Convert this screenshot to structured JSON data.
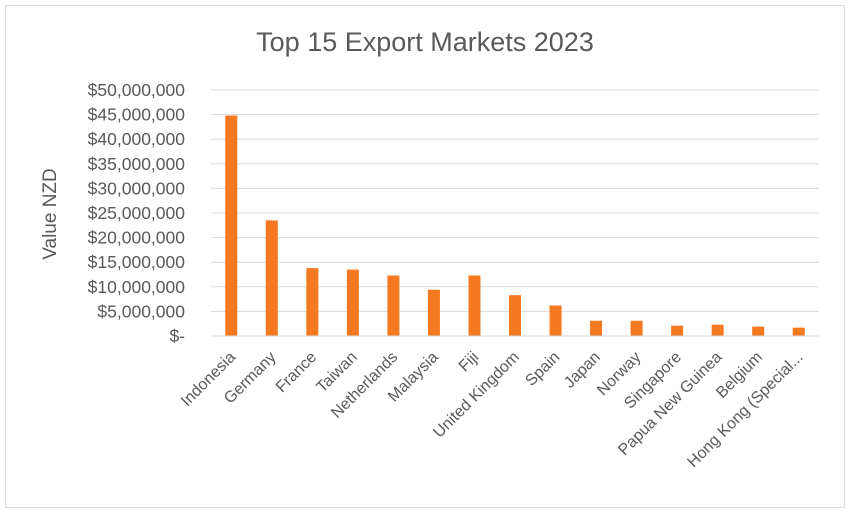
{
  "chart_data": {
    "type": "bar",
    "title": "Top 15 Export Markets 2023",
    "ylabel": "Value NZD",
    "xlabel": "",
    "categories": [
      "Indonesia",
      "Germany",
      "France",
      "Taiwan",
      "Netherlands",
      "Malaysia",
      "Fiji",
      "United Kingdom",
      "Spain",
      "Japan",
      "Norway",
      "Singapore",
      "Papua New Guinea",
      "Belgium",
      "Hong Kong (Special..."
    ],
    "values": [
      44800000,
      23500000,
      13800000,
      13500000,
      12300000,
      9400000,
      12300000,
      8300000,
      6200000,
      3100000,
      3100000,
      2100000,
      2300000,
      1900000,
      1700000
    ],
    "ylim": [
      0,
      50000000
    ],
    "yticks": [
      0,
      5000000,
      10000000,
      15000000,
      20000000,
      25000000,
      30000000,
      35000000,
      40000000,
      45000000,
      50000000
    ],
    "ytick_labels": [
      "$-",
      "$5,000,000",
      "$10,000,000",
      "$15,000,000",
      "$20,000,000",
      "$25,000,000",
      "$30,000,000",
      "$35,000,000",
      "$40,000,000",
      "$45,000,000",
      "$50,000,000"
    ],
    "grid": true,
    "bar_color": "#F47920",
    "grid_color": "#d9d9d9"
  }
}
